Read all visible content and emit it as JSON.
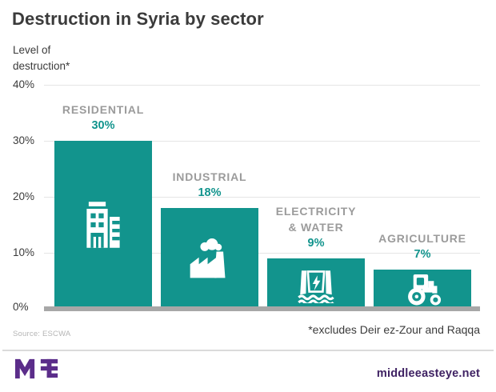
{
  "title": "Destruction in Syria by sector",
  "y_axis": {
    "label_line1": "Level of",
    "label_line2": "destruction*",
    "ticks": [
      "40%",
      "30%",
      "20%",
      "10%",
      "0%"
    ]
  },
  "chart_data": {
    "type": "bar",
    "title": "Destruction in Syria by sector",
    "ylabel": "Level of destruction*",
    "ylim": [
      0,
      40
    ],
    "y_tick_values": [
      40,
      30,
      20,
      10,
      0
    ],
    "grid": true,
    "legend": "none",
    "categories": [
      "RESIDENTIAL",
      "INDUSTRIAL",
      "ELECTRICITY & WATER",
      "AGRICULTURE"
    ],
    "values": [
      30,
      18,
      9,
      7
    ],
    "bars": [
      {
        "label_line1": "RESIDENTIAL",
        "label_line2": "",
        "value_label": "30%",
        "icon": "building-icon"
      },
      {
        "label_line1": "INDUSTRIAL",
        "label_line2": "",
        "value_label": "18%",
        "icon": "factory-icon"
      },
      {
        "label_line1": "ELECTRICITY",
        "label_line2": "& WATER",
        "value_label": "9%",
        "icon": "hydro-dam-icon"
      },
      {
        "label_line1": "AGRICULTURE",
        "label_line2": "",
        "value_label": "7%",
        "icon": "tractor-icon"
      }
    ],
    "colors": {
      "bar": "#12948d",
      "category_label": "#9b9b9b",
      "value_label": "#12948d",
      "gridline": "#e4e4e4",
      "baseline": "#a7a7a7"
    }
  },
  "footnotes": {
    "source": "Source: ESCWA",
    "note": "*excludes Deir ez-Zour and Raqqa"
  },
  "footer": {
    "logo_alt": "MEE",
    "logo_color": "#5b2d8a",
    "site": "middleeasteye.net",
    "site_color": "#3f2263"
  }
}
